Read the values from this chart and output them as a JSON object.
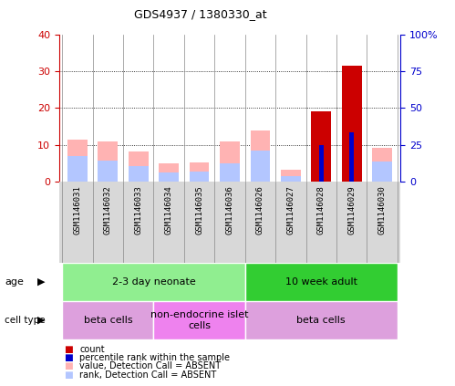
{
  "title": "GDS4937 / 1380330_at",
  "samples": [
    "GSM1146031",
    "GSM1146032",
    "GSM1146033",
    "GSM1146034",
    "GSM1146035",
    "GSM1146036",
    "GSM1146026",
    "GSM1146027",
    "GSM1146028",
    "GSM1146029",
    "GSM1146030"
  ],
  "value_absent": [
    11.5,
    10.8,
    8.2,
    5.0,
    5.2,
    11.0,
    14.0,
    3.2,
    0,
    0,
    9.2
  ],
  "rank_absent": [
    7.0,
    5.8,
    4.2,
    2.5,
    2.8,
    5.0,
    8.5,
    1.5,
    0,
    0,
    5.5
  ],
  "count": [
    0,
    0,
    0,
    0,
    0,
    0,
    0,
    0,
    19.0,
    31.5,
    0
  ],
  "percentile_rank": [
    0,
    0,
    0,
    0,
    0,
    0,
    0,
    0,
    10.0,
    13.5,
    0
  ],
  "has_count": [
    false,
    false,
    false,
    false,
    false,
    false,
    false,
    false,
    true,
    true,
    false
  ],
  "ylim_left": [
    0,
    40
  ],
  "ylim_right": [
    0,
    100
  ],
  "yticks_left": [
    0,
    10,
    20,
    30,
    40
  ],
  "yticks_right": [
    0,
    25,
    50,
    75,
    100
  ],
  "ytick_labels_right": [
    "0",
    "25",
    "50",
    "75",
    "100%"
  ],
  "color_value_absent": "#ffb3b3",
  "color_rank_absent": "#b3c6ff",
  "color_count": "#cc0000",
  "color_percentile": "#0000cc",
  "color_axis_left": "#cc0000",
  "color_axis_right": "#0000cc",
  "age_groups": [
    {
      "label": "2-3 day neonate",
      "start": 0,
      "end": 6,
      "color": "#90ee90"
    },
    {
      "label": "10 week adult",
      "start": 6,
      "end": 11,
      "color": "#32cd32"
    }
  ],
  "cell_type_groups": [
    {
      "label": "beta cells",
      "start": 0,
      "end": 3,
      "color": "#dda0dd"
    },
    {
      "label": "non-endocrine islet\ncells",
      "start": 3,
      "end": 6,
      "color": "#ee82ee"
    },
    {
      "label": "beta cells",
      "start": 6,
      "end": 11,
      "color": "#dda0dd"
    }
  ],
  "legend_items": [
    {
      "label": "count",
      "color": "#cc0000"
    },
    {
      "label": "percentile rank within the sample",
      "color": "#0000cc"
    },
    {
      "label": "value, Detection Call = ABSENT",
      "color": "#ffb3b3"
    },
    {
      "label": "rank, Detection Call = ABSENT",
      "color": "#b3c6ff"
    }
  ],
  "bar_width": 0.65,
  "label_fontsize": 6.5,
  "tick_label_fontsize": 8
}
